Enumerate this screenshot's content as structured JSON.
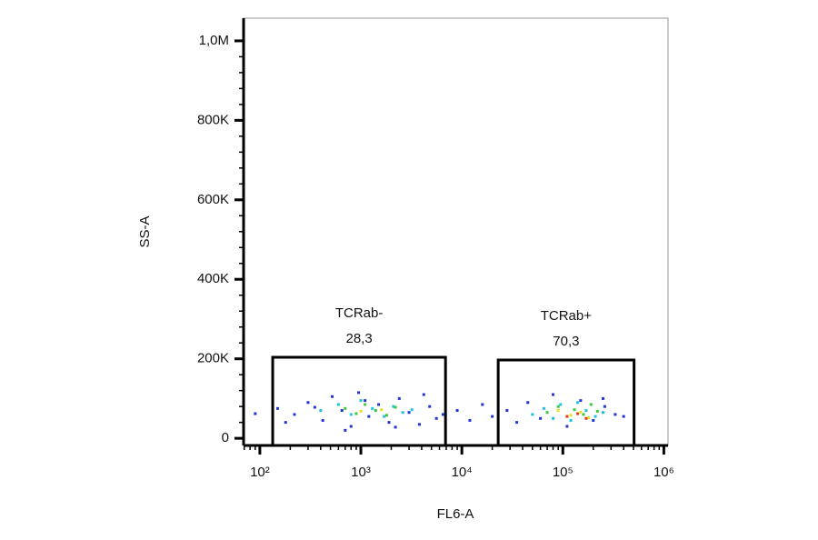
{
  "chart_data": {
    "type": "scatter",
    "xlabel": "FL6-A",
    "ylabel": "SS-A",
    "xscale": "log",
    "xlim": [
      69,
      1100000
    ],
    "ylim": [
      -18000,
      1057000
    ],
    "xticks": [
      {
        "value": 100,
        "label": "10²"
      },
      {
        "value": 1000,
        "label": "10³"
      },
      {
        "value": 10000,
        "label": "10⁴"
      },
      {
        "value": 100000,
        "label": "10⁵"
      },
      {
        "value": 1000000,
        "label": "10⁶"
      }
    ],
    "xminorticks": [
      70,
      80,
      90,
      200,
      300,
      400,
      500,
      600,
      700,
      800,
      900,
      2000,
      3000,
      4000,
      5000,
      6000,
      7000,
      8000,
      9000,
      20000,
      30000,
      40000,
      50000,
      60000,
      70000,
      80000,
      90000,
      200000,
      300000,
      400000,
      500000,
      600000,
      700000,
      800000,
      900000
    ],
    "yticks": [
      0,
      {
        "value": 200000,
        "label": "200K"
      },
      {
        "value": 400000,
        "label": "400K"
      },
      {
        "value": 600000,
        "label": "600K"
      },
      {
        "value": 800000,
        "label": "800K"
      },
      {
        "value": 1000000,
        "label": "1,0M"
      }
    ],
    "yminorticks": [
      40000,
      80000,
      120000,
      160000,
      240000,
      280000,
      320000,
      360000,
      440000,
      480000,
      520000,
      560000,
      640000,
      680000,
      720000,
      760000,
      840000,
      880000,
      920000,
      960000
    ],
    "gates": [
      {
        "name": "TCRab-",
        "label": "28,3",
        "x": [
          134,
          6890
        ],
        "y": [
          -18000,
          204000
        ]
      },
      {
        "name": "TCRab+",
        "label": "70,3",
        "x": [
          22900,
          507000
        ],
        "y": [
          -18000,
          197000
        ]
      }
    ],
    "series": [
      {
        "color": "#2236d8",
        "x": [
          150,
          220,
          300,
          420,
          520,
          650,
          800,
          950,
          1200,
          1500,
          1900,
          2400,
          3000,
          3800,
          4800,
          5600,
          6500,
          9000,
          12000,
          16000,
          20000,
          28000,
          35000,
          45000,
          60000,
          80000,
          110000,
          150000,
          200000,
          260000,
          330000,
          400000,
          90,
          180,
          350,
          700,
          1100,
          2200,
          4200,
          250000
        ],
        "y": [
          75000,
          60000,
          90000,
          45000,
          105000,
          70000,
          30000,
          115000,
          55000,
          85000,
          40000,
          100000,
          65000,
          35000,
          80000,
          50000,
          60000,
          70000,
          45000,
          85000,
          55000,
          70000,
          40000,
          90000,
          50000,
          110000,
          30000,
          95000,
          45000,
          80000,
          60000,
          55000,
          62000,
          40000,
          78000,
          20000,
          95000,
          28000,
          110000,
          100000
        ]
      },
      {
        "color": "#1cc4e4",
        "x": [
          400,
          600,
          800,
          1000,
          1300,
          1700,
          2100,
          2600,
          3200,
          50000,
          65000,
          80000,
          95000,
          120000,
          140000,
          170000,
          210000,
          250000
        ],
        "y": [
          70000,
          85000,
          60000,
          95000,
          75000,
          55000,
          80000,
          65000,
          72000,
          60000,
          75000,
          50000,
          85000,
          45000,
          90000,
          70000,
          55000,
          65000
        ]
      },
      {
        "color": "#3cc83c",
        "x": [
          700,
          900,
          1100,
          1400,
          1800,
          2200,
          70000,
          90000,
          110000,
          130000,
          160000,
          190000,
          220000
        ],
        "y": [
          75000,
          62000,
          85000,
          70000,
          58000,
          78000,
          65000,
          80000,
          55000,
          72000,
          60000,
          85000,
          68000
        ]
      },
      {
        "color": "#e6e020",
        "x": [
          1000,
          1600,
          90000,
          120000,
          150000,
          180000
        ],
        "y": [
          68000,
          72000,
          70000,
          58000,
          66000,
          52000
        ]
      },
      {
        "color": "#e83a1e",
        "x": [
          110000,
          140000,
          170000
        ],
        "y": [
          55000,
          62000,
          50000
        ]
      }
    ]
  }
}
